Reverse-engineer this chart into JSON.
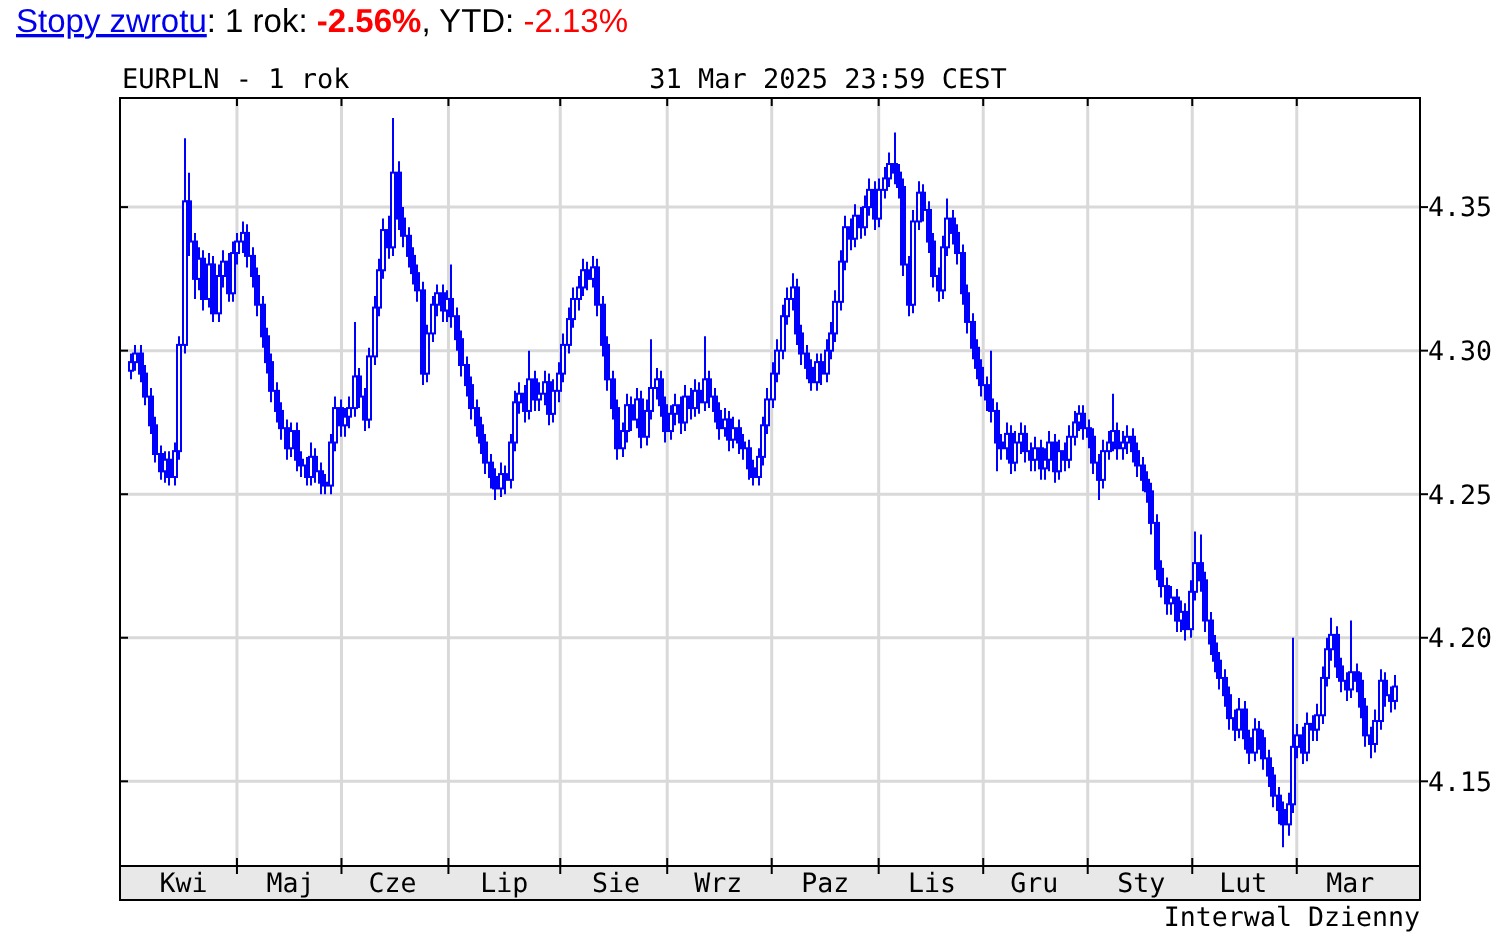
{
  "chart_data": {
    "type": "candlestick",
    "title": "EURPLN - 1 rok",
    "subtitle": "31 Mar 2025 23:59 CEST",
    "annotations": [
      "Stopy zwrotu: 1 rok: -2.56%, YTD: -2.13%",
      "Interwal Dzienny"
    ],
    "color": "#0000ff",
    "grid": true,
    "ylim": [
      4.1205,
      4.388
    ],
    "yticks": [
      4.15,
      {
        "value": 4.2,
        "label": "4.20"
      },
      4.25,
      {
        "value": 4.3,
        "label": "4.30"
      },
      4.35
    ],
    "categories": [
      null,
      null,
      null,
      null,
      null,
      null,
      null,
      null,
      null,
      null,
      null,
      "Kwi",
      null,
      null,
      null,
      null,
      null,
      null,
      null,
      null,
      null,
      null,
      null,
      null,
      null,
      null,
      null,
      null,
      null,
      null,
      null,
      null,
      null,
      "Maj",
      null,
      null,
      null,
      null,
      null,
      null,
      null,
      null,
      null,
      null,
      null,
      null,
      null,
      null,
      null,
      null,
      null,
      null,
      null,
      null,
      "Cze",
      null,
      null,
      null,
      null,
      null,
      null,
      null,
      null,
      null,
      null,
      null,
      null,
      null,
      null,
      null,
      null,
      null,
      null,
      null,
      null,
      null,
      null,
      "Lip",
      null,
      null,
      null,
      null,
      null,
      null,
      null,
      null,
      null,
      null,
      null,
      null,
      null,
      null,
      null,
      null,
      null,
      null,
      null,
      null,
      null,
      null,
      "Sie",
      null,
      null,
      null,
      null,
      null,
      null,
      null,
      null,
      null,
      null,
      null,
      null,
      null,
      null,
      null,
      null,
      null,
      null,
      null,
      null,
      "Wrz",
      null,
      null,
      null,
      null,
      null,
      null,
      null,
      null,
      null,
      null,
      null,
      null,
      null,
      null,
      null,
      null,
      null,
      null,
      null,
      null,
      null,
      "Paz",
      null,
      null,
      null,
      null,
      null,
      null,
      null,
      null,
      null,
      null,
      null,
      null,
      null,
      null,
      null,
      null,
      null,
      null,
      null,
      null,
      null,
      "Lis",
      null,
      null,
      null,
      null,
      null,
      null,
      null,
      null,
      null,
      null,
      null,
      null,
      null,
      null,
      null,
      null,
      null,
      null,
      null,
      null,
      "Gru",
      null,
      null,
      null,
      null,
      null,
      null,
      null,
      null,
      null,
      null,
      null,
      null,
      null,
      null,
      null,
      null,
      null,
      null,
      null,
      null,
      null,
      "Sty",
      null,
      null,
      null,
      null,
      null,
      null,
      null,
      null,
      null,
      null,
      null,
      null,
      null,
      null,
      null,
      null,
      null,
      null,
      null,
      null,
      "Lut",
      null,
      null,
      null,
      null,
      null,
      null,
      null,
      null,
      null,
      null,
      null,
      null,
      null,
      null,
      null,
      null,
      null,
      null,
      null,
      null,
      null,
      "Mar",
      null,
      null,
      null,
      null,
      null,
      null,
      null,
      null,
      null
    ],
    "ohlc": [
      [
        4.293,
        4.299,
        4.29,
        4.296
      ],
      [
        4.296,
        4.302,
        4.293,
        4.299
      ],
      [
        4.299,
        4.302,
        4.289,
        4.292
      ],
      [
        4.292,
        4.295,
        4.281,
        4.284
      ],
      [
        4.284,
        4.287,
        4.271,
        4.274
      ],
      [
        4.274,
        4.277,
        4.261,
        4.264
      ],
      [
        4.264,
        4.267,
        4.255,
        4.258
      ],
      [
        4.258,
        4.265,
        4.254,
        4.262
      ],
      [
        4.262,
        4.265,
        4.253,
        4.256
      ],
      [
        4.256,
        4.268,
        4.253,
        4.265
      ],
      [
        4.265,
        4.305,
        4.262,
        4.302
      ],
      [
        4.302,
        4.374,
        4.299,
        4.352
      ],
      [
        4.352,
        4.362,
        4.333,
        4.338
      ],
      [
        4.338,
        4.341,
        4.318,
        4.325
      ],
      [
        4.325,
        4.336,
        4.321,
        4.332
      ],
      [
        4.332,
        4.335,
        4.314,
        4.318
      ],
      [
        4.318,
        4.334,
        4.315,
        4.33
      ],
      [
        4.33,
        4.333,
        4.31,
        4.313
      ],
      [
        4.313,
        4.33,
        4.31,
        4.326
      ],
      [
        4.326,
        4.335,
        4.322,
        4.331
      ],
      [
        4.331,
        4.334,
        4.317,
        4.32
      ],
      [
        4.32,
        4.338,
        4.317,
        4.334
      ],
      [
        4.334,
        4.341,
        4.33,
        4.338
      ],
      [
        4.338,
        4.345,
        4.334,
        4.341
      ],
      [
        4.341,
        4.344,
        4.329,
        4.333
      ],
      [
        4.333,
        4.336,
        4.322,
        4.326
      ],
      [
        4.326,
        4.329,
        4.312,
        4.316
      ],
      [
        4.316,
        4.319,
        4.301,
        4.305
      ],
      [
        4.305,
        4.308,
        4.292,
        4.296
      ],
      [
        4.296,
        4.299,
        4.282,
        4.286
      ],
      [
        4.286,
        4.289,
        4.275,
        4.279
      ],
      [
        4.279,
        4.282,
        4.269,
        4.273
      ],
      [
        4.273,
        4.276,
        4.262,
        4.266
      ],
      [
        4.266,
        4.275,
        4.263,
        4.272
      ],
      [
        4.272,
        4.275,
        4.258,
        4.262
      ],
      [
        4.262,
        4.265,
        4.256,
        4.26
      ],
      [
        4.26,
        4.263,
        4.253,
        4.256
      ],
      [
        4.256,
        4.268,
        4.253,
        4.263
      ],
      [
        4.263,
        4.266,
        4.254,
        4.258
      ],
      [
        4.258,
        4.261,
        4.25,
        4.254
      ],
      [
        4.254,
        4.257,
        4.25,
        4.253
      ],
      [
        4.253,
        4.271,
        4.25,
        4.268
      ],
      [
        4.268,
        4.284,
        4.265,
        4.28
      ],
      [
        4.28,
        4.283,
        4.27,
        4.274
      ],
      [
        4.274,
        4.28,
        4.27,
        4.277
      ],
      [
        4.277,
        4.284,
        4.273,
        4.28
      ],
      [
        4.28,
        4.31,
        4.277,
        4.291
      ],
      [
        4.291,
        4.294,
        4.28,
        4.284
      ],
      [
        4.284,
        4.287,
        4.272,
        4.276
      ],
      [
        4.276,
        4.301,
        4.273,
        4.298
      ],
      [
        4.298,
        4.319,
        4.295,
        4.315
      ],
      [
        4.315,
        4.332,
        4.312,
        4.328
      ],
      [
        4.328,
        4.346,
        4.325,
        4.342
      ],
      [
        4.342,
        4.347,
        4.332,
        4.336
      ],
      [
        4.336,
        4.381,
        4.333,
        4.362
      ],
      [
        4.362,
        4.366,
        4.342,
        4.346
      ],
      [
        4.346,
        4.35,
        4.336,
        4.34
      ],
      [
        4.34,
        4.343,
        4.329,
        4.333
      ],
      [
        4.333,
        4.336,
        4.323,
        4.327
      ],
      [
        4.327,
        4.33,
        4.317,
        4.321
      ],
      [
        4.321,
        4.324,
        4.288,
        4.292
      ],
      [
        4.292,
        4.309,
        4.289,
        4.306
      ],
      [
        4.306,
        4.319,
        4.303,
        4.316
      ],
      [
        4.316,
        4.323,
        4.312,
        4.32
      ],
      [
        4.32,
        4.323,
        4.31,
        4.314
      ],
      [
        4.314,
        4.321,
        4.31,
        4.318
      ],
      [
        4.318,
        4.33,
        4.308,
        4.312
      ],
      [
        4.312,
        4.315,
        4.3,
        4.304
      ],
      [
        4.304,
        4.307,
        4.291,
        4.295
      ],
      [
        4.295,
        4.298,
        4.284,
        4.288
      ],
      [
        4.288,
        4.291,
        4.276,
        4.28
      ],
      [
        4.28,
        4.283,
        4.27,
        4.274
      ],
      [
        4.274,
        4.277,
        4.264,
        4.268
      ],
      [
        4.268,
        4.271,
        4.257,
        4.261
      ],
      [
        4.261,
        4.264,
        4.252,
        4.256
      ],
      [
        4.256,
        4.259,
        4.248,
        4.252
      ],
      [
        4.252,
        4.261,
        4.249,
        4.257
      ],
      [
        4.257,
        4.26,
        4.25,
        4.255
      ],
      [
        4.255,
        4.271,
        4.252,
        4.268
      ],
      [
        4.268,
        4.286,
        4.265,
        4.282
      ],
      [
        4.282,
        4.289,
        4.278,
        4.285
      ],
      [
        4.285,
        4.288,
        4.275,
        4.279
      ],
      [
        4.279,
        4.3,
        4.276,
        4.29
      ],
      [
        4.29,
        4.293,
        4.279,
        4.283
      ],
      [
        4.283,
        4.289,
        4.279,
        4.285
      ],
      [
        4.285,
        4.293,
        4.281,
        4.289
      ],
      [
        4.289,
        4.292,
        4.274,
        4.278
      ],
      [
        4.278,
        4.29,
        4.275,
        4.286
      ],
      [
        4.286,
        4.296,
        4.282,
        4.292
      ],
      [
        4.292,
        4.306,
        4.289,
        4.302
      ],
      [
        4.302,
        4.315,
        4.299,
        4.311
      ],
      [
        4.311,
        4.322,
        4.308,
        4.318
      ],
      [
        4.318,
        4.326,
        4.314,
        4.322
      ],
      [
        4.322,
        4.332,
        4.319,
        4.328
      ],
      [
        4.328,
        4.331,
        4.321,
        4.325
      ],
      [
        4.325,
        4.333,
        4.322,
        4.329
      ],
      [
        4.329,
        4.332,
        4.312,
        4.316
      ],
      [
        4.316,
        4.319,
        4.298,
        4.302
      ],
      [
        4.302,
        4.305,
        4.286,
        4.29
      ],
      [
        4.29,
        4.293,
        4.276,
        4.28
      ],
      [
        4.28,
        4.283,
        4.262,
        4.266
      ],
      [
        4.266,
        4.275,
        4.263,
        4.272
      ],
      [
        4.272,
        4.285,
        4.268,
        4.281
      ],
      [
        4.281,
        4.284,
        4.272,
        4.276
      ],
      [
        4.276,
        4.287,
        4.273,
        4.283
      ],
      [
        4.283,
        4.286,
        4.266,
        4.27
      ],
      [
        4.27,
        4.283,
        4.267,
        4.279
      ],
      [
        4.279,
        4.304,
        4.276,
        4.287
      ],
      [
        4.287,
        4.294,
        4.283,
        4.29
      ],
      [
        4.29,
        4.293,
        4.277,
        4.281
      ],
      [
        4.281,
        4.284,
        4.268,
        4.272
      ],
      [
        4.272,
        4.281,
        4.269,
        4.278
      ],
      [
        4.278,
        4.285,
        4.274,
        4.281
      ],
      [
        4.281,
        4.284,
        4.271,
        4.275
      ],
      [
        4.275,
        4.288,
        4.272,
        4.284
      ],
      [
        4.284,
        4.287,
        4.276,
        4.28
      ],
      [
        4.28,
        4.29,
        4.277,
        4.286
      ],
      [
        4.286,
        4.289,
        4.278,
        4.282
      ],
      [
        4.282,
        4.305,
        4.279,
        4.29
      ],
      [
        4.29,
        4.293,
        4.28,
        4.284
      ],
      [
        4.284,
        4.287,
        4.275,
        4.279
      ],
      [
        4.279,
        4.282,
        4.269,
        4.273
      ],
      [
        4.273,
        4.28,
        4.27,
        4.276
      ],
      [
        4.276,
        4.279,
        4.265,
        4.269
      ],
      [
        4.269,
        4.277,
        4.266,
        4.273
      ],
      [
        4.273,
        4.276,
        4.264,
        4.268
      ],
      [
        4.268,
        4.271,
        4.262,
        4.266
      ],
      [
        4.266,
        4.269,
        4.255,
        4.259
      ],
      [
        4.259,
        4.262,
        4.253,
        4.256
      ],
      [
        4.256,
        4.266,
        4.253,
        4.263
      ],
      [
        4.263,
        4.277,
        4.26,
        4.274
      ],
      [
        4.274,
        4.287,
        4.271,
        4.283
      ],
      [
        4.283,
        4.296,
        4.28,
        4.292
      ],
      [
        4.292,
        4.304,
        4.289,
        4.3
      ],
      [
        4.3,
        4.316,
        4.297,
        4.312
      ],
      [
        4.312,
        4.322,
        4.309,
        4.318
      ],
      [
        4.318,
        4.327,
        4.314,
        4.322
      ],
      [
        4.322,
        4.325,
        4.302,
        4.306
      ],
      [
        4.306,
        4.309,
        4.295,
        4.299
      ],
      [
        4.299,
        4.302,
        4.29,
        4.294
      ],
      [
        4.294,
        4.297,
        4.286,
        4.289
      ],
      [
        4.289,
        4.299,
        4.286,
        4.296
      ],
      [
        4.296,
        4.299,
        4.288,
        4.292
      ],
      [
        4.292,
        4.304,
        4.289,
        4.3
      ],
      [
        4.3,
        4.31,
        4.297,
        4.306
      ],
      [
        4.306,
        4.321,
        4.303,
        4.317
      ],
      [
        4.317,
        4.335,
        4.314,
        4.331
      ],
      [
        4.331,
        4.347,
        4.328,
        4.343
      ],
      [
        4.343,
        4.346,
        4.335,
        4.339
      ],
      [
        4.339,
        4.351,
        4.336,
        4.347
      ],
      [
        4.347,
        4.35,
        4.339,
        4.343
      ],
      [
        4.343,
        4.354,
        4.34,
        4.35
      ],
      [
        4.35,
        4.36,
        4.347,
        4.356
      ],
      [
        4.356,
        4.359,
        4.342,
        4.346
      ],
      [
        4.346,
        4.36,
        4.343,
        4.356
      ],
      [
        4.356,
        4.364,
        4.353,
        4.36
      ],
      [
        4.36,
        4.369,
        4.357,
        4.365
      ],
      [
        4.365,
        4.376,
        4.358,
        4.362
      ],
      [
        4.362,
        4.365,
        4.353,
        4.357
      ],
      [
        4.357,
        4.36,
        4.326,
        4.33
      ],
      [
        4.33,
        4.333,
        4.312,
        4.316
      ],
      [
        4.316,
        4.349,
        4.313,
        4.345
      ],
      [
        4.345,
        4.359,
        4.342,
        4.355
      ],
      [
        4.355,
        4.358,
        4.345,
        4.349
      ],
      [
        4.349,
        4.352,
        4.334,
        4.338
      ],
      [
        4.338,
        4.341,
        4.322,
        4.326
      ],
      [
        4.326,
        4.329,
        4.317,
        4.321
      ],
      [
        4.321,
        4.34,
        4.318,
        4.336
      ],
      [
        4.336,
        4.353,
        4.333,
        4.346
      ],
      [
        4.346,
        4.349,
        4.337,
        4.341
      ],
      [
        4.341,
        4.344,
        4.33,
        4.334
      ],
      [
        4.334,
        4.337,
        4.316,
        4.32
      ],
      [
        4.32,
        4.323,
        4.306,
        4.31
      ],
      [
        4.31,
        4.313,
        4.297,
        4.301
      ],
      [
        4.301,
        4.304,
        4.29,
        4.294
      ],
      [
        4.294,
        4.297,
        4.284,
        4.288
      ],
      [
        4.288,
        4.291,
        4.279,
        4.283
      ],
      [
        4.283,
        4.3,
        4.275,
        4.279
      ],
      [
        4.279,
        4.282,
        4.258,
        4.268
      ],
      [
        4.268,
        4.271,
        4.262,
        4.266
      ],
      [
        4.266,
        4.275,
        4.262,
        4.271
      ],
      [
        4.271,
        4.274,
        4.257,
        4.261
      ],
      [
        4.261,
        4.272,
        4.258,
        4.268
      ],
      [
        4.268,
        4.275,
        4.264,
        4.271
      ],
      [
        4.271,
        4.274,
        4.261,
        4.265
      ],
      [
        4.265,
        4.268,
        4.258,
        4.262
      ],
      [
        4.262,
        4.27,
        4.258,
        4.266
      ],
      [
        4.266,
        4.269,
        4.255,
        4.259
      ],
      [
        4.259,
        4.266,
        4.255,
        4.262
      ],
      [
        4.262,
        4.272,
        4.258,
        4.268
      ],
      [
        4.268,
        4.271,
        4.254,
        4.258
      ],
      [
        4.258,
        4.269,
        4.255,
        4.265
      ],
      [
        4.265,
        4.268,
        4.258,
        4.262
      ],
      [
        4.262,
        4.274,
        4.259,
        4.27
      ],
      [
        4.27,
        4.279,
        4.267,
        4.275
      ],
      [
        4.275,
        4.281,
        4.272,
        4.278
      ],
      [
        4.278,
        4.281,
        4.269,
        4.273
      ],
      [
        4.273,
        4.276,
        4.266,
        4.27
      ],
      [
        4.27,
        4.273,
        4.257,
        4.261
      ],
      [
        4.261,
        4.264,
        4.248,
        4.255
      ],
      [
        4.255,
        4.269,
        4.252,
        4.265
      ],
      [
        4.265,
        4.272,
        4.262,
        4.268
      ],
      [
        4.268,
        4.285,
        4.265,
        4.272
      ],
      [
        4.272,
        4.275,
        4.262,
        4.266
      ],
      [
        4.266,
        4.272,
        4.262,
        4.268
      ],
      [
        4.268,
        4.274,
        4.264,
        4.27
      ],
      [
        4.27,
        4.273,
        4.261,
        4.265
      ],
      [
        4.265,
        4.268,
        4.256,
        4.26
      ],
      [
        4.26,
        4.263,
        4.251,
        4.255
      ],
      [
        4.255,
        4.258,
        4.247,
        4.251
      ],
      [
        4.251,
        4.254,
        4.236,
        4.24
      ],
      [
        4.24,
        4.243,
        4.22,
        4.224
      ],
      [
        4.224,
        4.227,
        4.214,
        4.218
      ],
      [
        4.218,
        4.221,
        4.208,
        4.212
      ],
      [
        4.212,
        4.218,
        4.208,
        4.214
      ],
      [
        4.214,
        4.217,
        4.202,
        4.206
      ],
      [
        4.206,
        4.213,
        4.202,
        4.209
      ],
      [
        4.209,
        4.212,
        4.199,
        4.203
      ],
      [
        4.203,
        4.22,
        4.2,
        4.216
      ],
      [
        4.216,
        4.237,
        4.213,
        4.226
      ],
      [
        4.226,
        4.236,
        4.216,
        4.22
      ],
      [
        4.22,
        4.223,
        4.202,
        4.206
      ],
      [
        4.206,
        4.209,
        4.194,
        4.198
      ],
      [
        4.198,
        4.201,
        4.188,
        4.192
      ],
      [
        4.192,
        4.195,
        4.182,
        4.186
      ],
      [
        4.186,
        4.189,
        4.176,
        4.18
      ],
      [
        4.18,
        4.183,
        4.168,
        4.172
      ],
      [
        4.172,
        4.175,
        4.164,
        4.168
      ],
      [
        4.168,
        4.179,
        4.165,
        4.175
      ],
      [
        4.175,
        4.178,
        4.161,
        4.165
      ],
      [
        4.165,
        4.168,
        4.156,
        4.16
      ],
      [
        4.16,
        4.172,
        4.157,
        4.168
      ],
      [
        4.168,
        4.171,
        4.161,
        4.165
      ],
      [
        4.165,
        4.168,
        4.154,
        4.158
      ],
      [
        4.158,
        4.161,
        4.148,
        4.152
      ],
      [
        4.152,
        4.155,
        4.141,
        4.145
      ],
      [
        4.145,
        4.148,
        4.135,
        4.14
      ],
      [
        4.14,
        4.143,
        4.127,
        4.135
      ],
      [
        4.135,
        4.146,
        4.131,
        4.142
      ],
      [
        4.142,
        4.2,
        4.139,
        4.162
      ],
      [
        4.162,
        4.17,
        4.158,
        4.166
      ],
      [
        4.166,
        4.169,
        4.156,
        4.16
      ],
      [
        4.16,
        4.174,
        4.157,
        4.17
      ],
      [
        4.17,
        4.173,
        4.164,
        4.168
      ],
      [
        4.168,
        4.177,
        4.164,
        4.173
      ],
      [
        4.173,
        4.19,
        4.17,
        4.186
      ],
      [
        4.186,
        4.2,
        4.183,
        4.196
      ],
      [
        4.196,
        4.207,
        4.192,
        4.201
      ],
      [
        4.201,
        4.204,
        4.186,
        4.19
      ],
      [
        4.19,
        4.193,
        4.181,
        4.185
      ],
      [
        4.185,
        4.188,
        4.178,
        4.182
      ],
      [
        4.182,
        4.206,
        4.179,
        4.188
      ],
      [
        4.188,
        4.191,
        4.181,
        4.185
      ],
      [
        4.185,
        4.188,
        4.172,
        4.176
      ],
      [
        4.176,
        4.179,
        4.162,
        4.166
      ],
      [
        4.166,
        4.169,
        4.158,
        4.163
      ],
      [
        4.163,
        4.175,
        4.16,
        4.171
      ],
      [
        4.171,
        4.189,
        4.168,
        4.185
      ],
      [
        4.185,
        4.188,
        4.176,
        4.18
      ],
      [
        4.18,
        4.183,
        4.174,
        4.178
      ],
      [
        4.178,
        4.187,
        4.175,
        4.183
      ]
    ]
  }
}
